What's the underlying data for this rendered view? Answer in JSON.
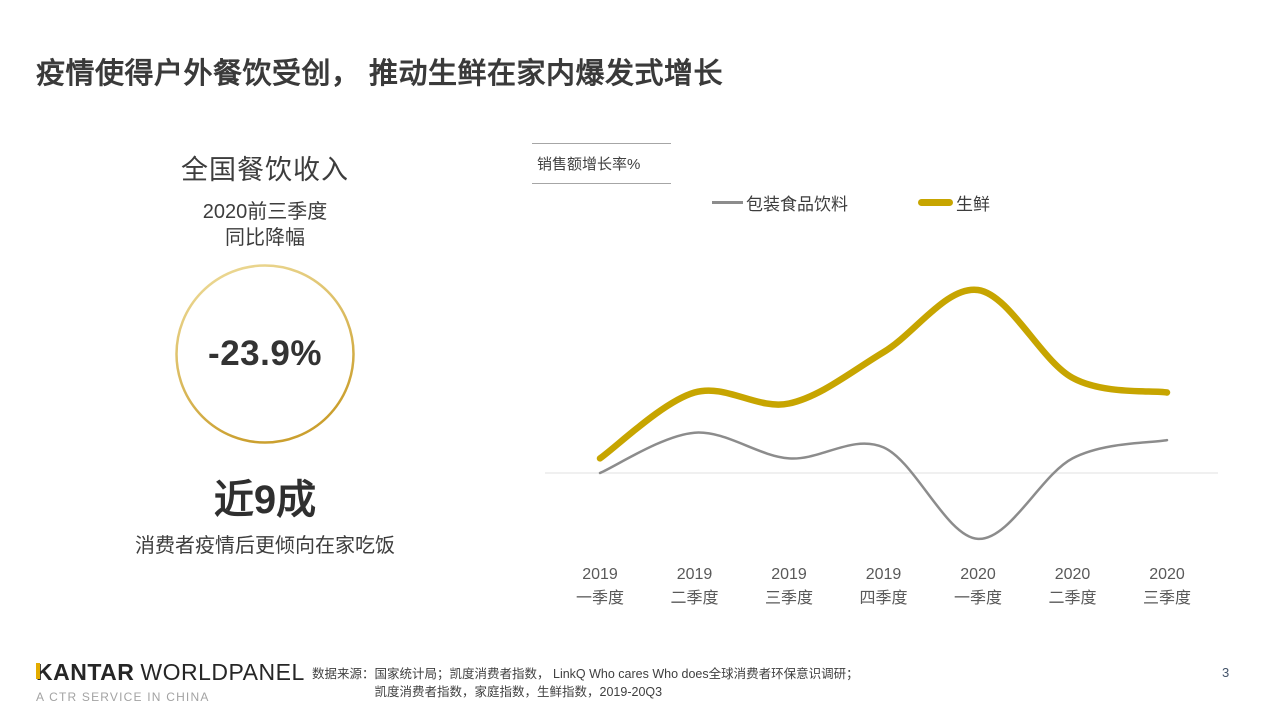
{
  "slide": {
    "title": "疫情使得户外餐饮受创， 推动生鲜在家内爆发式增长",
    "page_number": "3"
  },
  "stat_panel": {
    "heading": "全国餐饮收入",
    "subheading_line1": "2020前三季度",
    "subheading_line2": "同比降幅",
    "circle_value": "-23.9%",
    "highlight": "近9成",
    "highlight_caption": "消费者疫情后更倾向在家吃饭"
  },
  "chart_data": {
    "type": "line",
    "title": "销售额增长率%",
    "ylabel": "销售额增长率%",
    "y_axis_visible": false,
    "baseline": 0,
    "grid": "off",
    "legend_position": "top",
    "categories": [
      {
        "year": "2019",
        "quarter": "一季度"
      },
      {
        "year": "2019",
        "quarter": "二季度"
      },
      {
        "year": "2019",
        "quarter": "三季度"
      },
      {
        "year": "2019",
        "quarter": "四季度"
      },
      {
        "year": "2020",
        "quarter": "一季度"
      },
      {
        "year": "2020",
        "quarter": "二季度"
      },
      {
        "year": "2020",
        "quarter": "三季度"
      }
    ],
    "series": [
      {
        "name": "包装食品饮料",
        "color": "#8c8c8c",
        "line_width": 2.5,
        "values": [
          0,
          5.5,
          2,
          3.5,
          -9,
          2,
          4.5
        ]
      },
      {
        "name": "生鲜",
        "color": "#c7a500",
        "line_width": 6.5,
        "values": [
          2,
          11,
          9.5,
          16.5,
          25,
          13,
          11
        ]
      }
    ],
    "ylim_estimated": [
      -12,
      28
    ]
  },
  "footer": {
    "logo_primary": "KANTAR",
    "logo_secondary": "WORLDPANEL",
    "logo_tagline": "A CTR SERVICE IN CHINA",
    "source_label": "数据来源：",
    "source_line1": "国家统计局；凯度消费者指数， LinkQ  Who cares Who does全球消费者环保意识调研；",
    "source_line2": "凯度消费者指数，家庭指数，生鲜指数，2019-20Q3"
  },
  "colors": {
    "accent_gold": "#c7a500",
    "series_gray": "#8c8c8c",
    "circle_gradient_light": "#efde9e",
    "circle_gradient_dark": "#cba02f",
    "zero_line": "#e8e8e8",
    "text_dark": "#3b3b3b"
  }
}
